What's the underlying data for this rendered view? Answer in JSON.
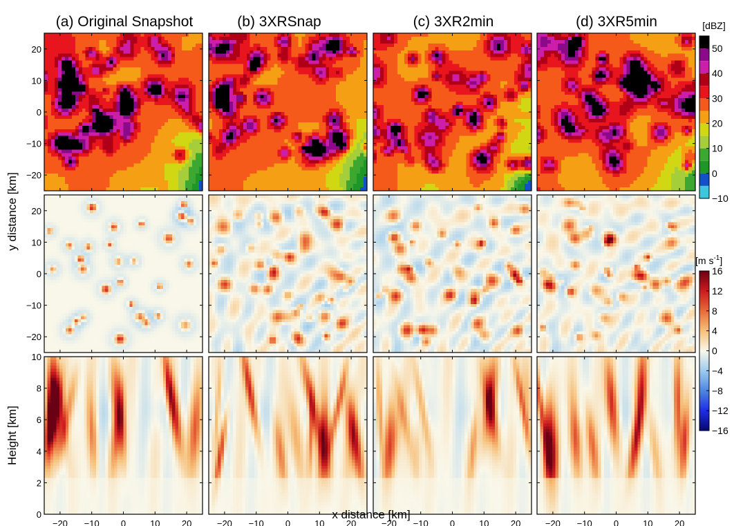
{
  "chart_data": {
    "type": "heatmap",
    "panel_titles": [
      "(a) Original Snapshot",
      "(b) 3XRSnap",
      "(c) 3XR2min",
      "(d) 3XR5min"
    ],
    "xlabel": "x distance [km]",
    "xlim": [
      -25,
      25
    ],
    "xticks": [
      -20,
      -10,
      0,
      10,
      20
    ],
    "xtick_labels": [
      "−20",
      "−10",
      "0",
      "10",
      "20"
    ],
    "rows": [
      {
        "name": "reflectivity",
        "ylabel": "",
        "ylim": [
          -25,
          25
        ],
        "yticks": [
          20,
          10,
          0,
          -10,
          -20
        ],
        "ytick_labels": [
          "20",
          "10",
          "0",
          "−10",
          "−20"
        ],
        "colormap": "reflectivity",
        "colorbar": "reflectivity"
      },
      {
        "name": "vertical-velocity-plan",
        "ylabel": "y distance [km]",
        "ylim": [
          -25,
          25
        ],
        "yticks": [
          20,
          10,
          0,
          -10,
          -20
        ],
        "ytick_labels": [
          "20",
          "10",
          "0",
          "−10",
          "−20"
        ],
        "colormap": "velocity",
        "colorbar": "velocity"
      },
      {
        "name": "vertical-velocity-section",
        "ylabel": "Height [km]",
        "ylim": [
          0,
          10
        ],
        "yticks": [
          10,
          8,
          6,
          4,
          2,
          0
        ],
        "ytick_labels": [
          "10",
          "8",
          "6",
          "4",
          "2",
          "0"
        ],
        "colormap": "velocity",
        "colorbar": "velocity"
      }
    ],
    "colorbars": {
      "reflectivity": {
        "unit": "[dBZ]",
        "range": [
          -10,
          55
        ],
        "ticks": [
          50,
          40,
          30,
          20,
          10,
          0,
          -10
        ],
        "tick_labels": [
          "50",
          "40",
          "30",
          "20",
          "10",
          "0",
          "−10"
        ],
        "bands": [
          {
            "from": 50,
            "to": 55,
            "color": "#000000"
          },
          {
            "from": 45,
            "to": 50,
            "color": "#8a0a8a"
          },
          {
            "from": 40,
            "to": 45,
            "color": "#cc1ea8"
          },
          {
            "from": 35,
            "to": 40,
            "color": "#b00018"
          },
          {
            "from": 30,
            "to": 35,
            "color": "#e8141e"
          },
          {
            "from": 25,
            "to": 30,
            "color": "#f55a1a"
          },
          {
            "from": 20,
            "to": 25,
            "color": "#f5a014"
          },
          {
            "from": 15,
            "to": 20,
            "color": "#d2d714"
          },
          {
            "from": 10,
            "to": 15,
            "color": "#a6cd3a"
          },
          {
            "from": 5,
            "to": 10,
            "color": "#3ca832"
          },
          {
            "from": 0,
            "to": 5,
            "color": "#1e9628"
          },
          {
            "from": -5,
            "to": 0,
            "color": "#1450c8"
          },
          {
            "from": -10,
            "to": -5,
            "color": "#3cc8dc"
          }
        ]
      },
      "velocity": {
        "unit": "[m s",
        "unit_sup": "-1",
        "unit_end": "]",
        "range": [
          -16,
          16
        ],
        "ticks": [
          16,
          12,
          8,
          4,
          0,
          -4,
          -8,
          -12,
          -16
        ],
        "tick_labels": [
          "16",
          "12",
          "8",
          "4",
          "0",
          "−4",
          "−8",
          "−12",
          "−16"
        ],
        "stops": [
          {
            "value": -16,
            "color": "#05086e"
          },
          {
            "value": -12,
            "color": "#1e2ce8"
          },
          {
            "value": -8,
            "color": "#4f86e0"
          },
          {
            "value": -4,
            "color": "#9dcbee"
          },
          {
            "value": 0,
            "color": "#f9f7e9"
          },
          {
            "value": 4,
            "color": "#f6c07a"
          },
          {
            "value": 8,
            "color": "#e86a3a"
          },
          {
            "value": 12,
            "color": "#cc1a1e"
          },
          {
            "value": 16,
            "color": "#6a0014"
          }
        ]
      }
    }
  }
}
